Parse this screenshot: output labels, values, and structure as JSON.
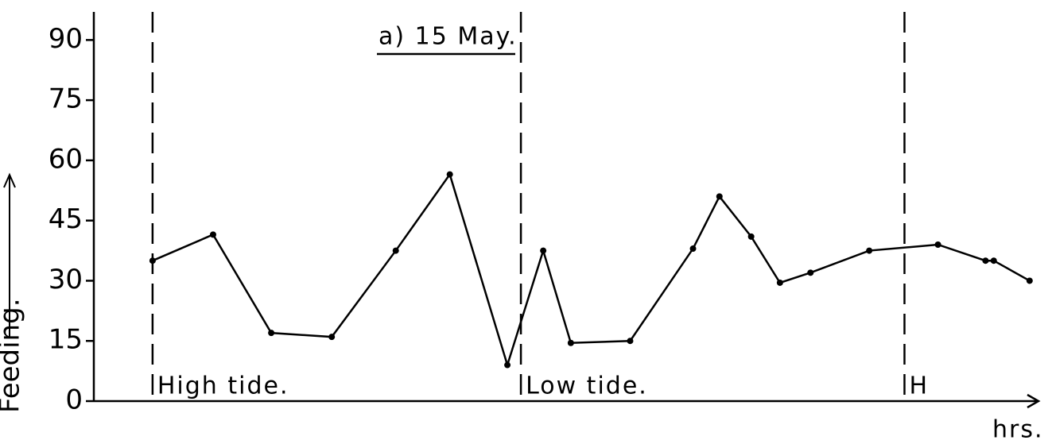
{
  "chart_data": {
    "type": "line",
    "title": "a) 15 May.",
    "y_label": "Feeding.",
    "x_label": "hrs.",
    "x": [
      0,
      1.03,
      2.02,
      3.05,
      4.14,
      5.06,
      6.04,
      6.65,
      7.12,
      8.13,
      9.2,
      9.65,
      10.19,
      10.68,
      11.2,
      12.2,
      13.37,
      14.18,
      14.32,
      14.93
    ],
    "series": [
      {
        "name": "Feeding",
        "color": "#000000",
        "values": [
          35,
          41.5,
          17,
          16,
          37.5,
          56.5,
          9,
          37.5,
          14.5,
          15,
          38,
          51,
          41,
          29.5,
          32,
          37.5,
          39,
          35,
          35,
          30
        ]
      }
    ],
    "xlim": [
      -1,
      15
    ],
    "ylim": [
      0,
      97
    ],
    "yticks": [
      0,
      15,
      30,
      45,
      60,
      75,
      90
    ],
    "annotations": [
      {
        "x": 0,
        "label": "High tide."
      },
      {
        "x": 6.27,
        "label": "Low tide."
      },
      {
        "x": 12.8,
        "label": "H"
      }
    ]
  }
}
